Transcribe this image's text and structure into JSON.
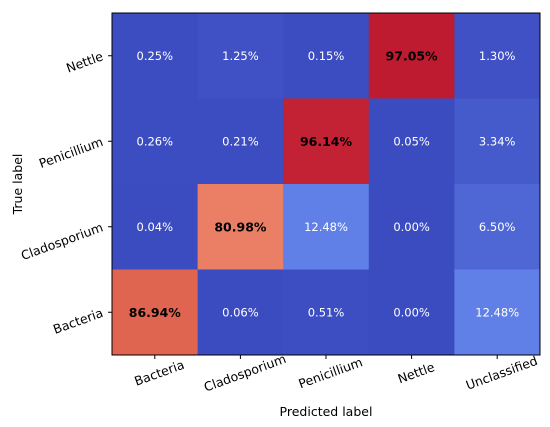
{
  "chart_data": {
    "type": "heatmap",
    "xlabel": "Predicted label",
    "ylabel": "True label",
    "x_categories": [
      "Bacteria",
      "Cladosporium",
      "Penicillium",
      "Nettle",
      "Unclassified"
    ],
    "y_categories": [
      "Nettle",
      "Penicillium",
      "Cladosporium",
      "Bacteria"
    ],
    "colormap": "coolwarm",
    "value_range": [
      0,
      100
    ],
    "values": [
      [
        0.25,
        1.25,
        0.15,
        97.05,
        1.3
      ],
      [
        0.26,
        0.21,
        96.14,
        0.05,
        3.34
      ],
      [
        0.04,
        80.98,
        12.48,
        0.0,
        6.5
      ],
      [
        86.94,
        0.06,
        0.51,
        0.0,
        12.48
      ]
    ],
    "cell_labels": [
      [
        "0.25%",
        "1.25%",
        "0.15%",
        "97.05%",
        "1.30%"
      ],
      [
        "0.26%",
        "0.21%",
        "96.14%",
        "0.05%",
        "3.34%"
      ],
      [
        "0.04%",
        "80.98%",
        "12.48%",
        "0.00%",
        "6.50%"
      ],
      [
        "86.94%",
        "0.06%",
        "0.51%",
        "0.00%",
        "12.48%"
      ]
    ]
  }
}
